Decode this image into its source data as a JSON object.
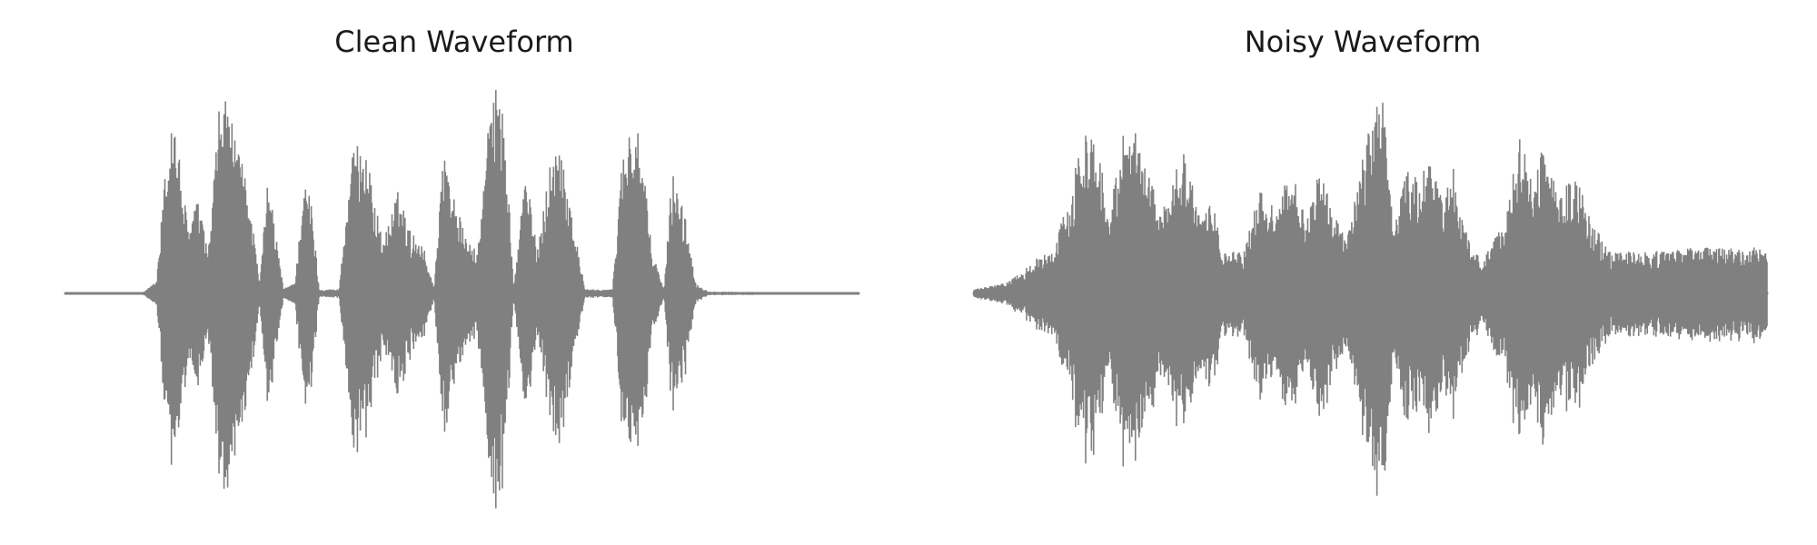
{
  "chart_data": [
    {
      "type": "line",
      "title": "Clean Waveform",
      "xlabel": "",
      "ylabel": "",
      "axes_visible": false,
      "grid": false,
      "line_color": "#808080",
      "ylim": [
        -1.0,
        1.0
      ],
      "series": [
        {
          "envelope": [
            [
              0.0,
              0.0
            ],
            [
              0.095,
              0.0
            ],
            [
              0.1,
              0.01
            ],
            [
              0.115,
              0.06
            ],
            [
              0.125,
              0.55
            ],
            [
              0.135,
              0.9
            ],
            [
              0.145,
              0.62
            ],
            [
              0.155,
              0.3
            ],
            [
              0.165,
              0.48
            ],
            [
              0.18,
              0.2
            ],
            [
              0.195,
              0.94
            ],
            [
              0.205,
              0.95
            ],
            [
              0.215,
              0.7
            ],
            [
              0.23,
              0.55
            ],
            [
              0.245,
              0.04
            ],
            [
              0.255,
              0.55
            ],
            [
              0.265,
              0.3
            ],
            [
              0.275,
              0.02
            ],
            [
              0.29,
              0.06
            ],
            [
              0.3,
              0.55
            ],
            [
              0.31,
              0.45
            ],
            [
              0.32,
              0.02
            ],
            [
              0.345,
              0.02
            ],
            [
              0.36,
              0.65
            ],
            [
              0.375,
              0.76
            ],
            [
              0.39,
              0.45
            ],
            [
              0.4,
              0.25
            ],
            [
              0.42,
              0.5
            ],
            [
              0.435,
              0.3
            ],
            [
              0.45,
              0.25
            ],
            [
              0.465,
              0.02
            ],
            [
              0.475,
              0.7
            ],
            [
              0.485,
              0.55
            ],
            [
              0.495,
              0.4
            ],
            [
              0.505,
              0.26
            ],
            [
              0.52,
              0.2
            ],
            [
              0.535,
              0.9
            ],
            [
              0.545,
              1.0
            ],
            [
              0.555,
              0.8
            ],
            [
              0.565,
              0.02
            ],
            [
              0.58,
              0.6
            ],
            [
              0.595,
              0.2
            ],
            [
              0.61,
              0.62
            ],
            [
              0.625,
              0.75
            ],
            [
              0.64,
              0.35
            ],
            [
              0.655,
              0.02
            ],
            [
              0.69,
              0.02
            ],
            [
              0.7,
              0.6
            ],
            [
              0.71,
              0.8
            ],
            [
              0.72,
              0.82
            ],
            [
              0.73,
              0.55
            ],
            [
              0.74,
              0.2
            ],
            [
              0.755,
              0.02
            ],
            [
              0.765,
              0.6
            ],
            [
              0.78,
              0.4
            ],
            [
              0.795,
              0.05
            ],
            [
              0.81,
              0.01
            ],
            [
              1.0,
              0.0
            ]
          ]
        }
      ]
    },
    {
      "type": "line",
      "title": "Noisy Waveform",
      "xlabel": "",
      "ylabel": "",
      "axes_visible": false,
      "grid": false,
      "line_color": "#808080",
      "ylim": [
        -1.0,
        1.0
      ],
      "series": [
        {
          "envelope": [
            [
              0.0,
              0.02
            ],
            [
              0.04,
              0.05
            ],
            [
              0.06,
              0.1
            ],
            [
              0.08,
              0.18
            ],
            [
              0.1,
              0.2
            ],
            [
              0.125,
              0.55
            ],
            [
              0.14,
              0.8
            ],
            [
              0.155,
              0.78
            ],
            [
              0.17,
              0.35
            ],
            [
              0.185,
              0.78
            ],
            [
              0.2,
              0.85
            ],
            [
              0.215,
              0.65
            ],
            [
              0.235,
              0.4
            ],
            [
              0.25,
              0.55
            ],
            [
              0.265,
              0.7
            ],
            [
              0.285,
              0.35
            ],
            [
              0.3,
              0.45
            ],
            [
              0.315,
              0.2
            ],
            [
              0.34,
              0.2
            ],
            [
              0.36,
              0.5
            ],
            [
              0.38,
              0.4
            ],
            [
              0.4,
              0.6
            ],
            [
              0.42,
              0.35
            ],
            [
              0.435,
              0.65
            ],
            [
              0.45,
              0.45
            ],
            [
              0.47,
              0.25
            ],
            [
              0.49,
              0.65
            ],
            [
              0.505,
              0.9
            ],
            [
              0.515,
              1.0
            ],
            [
              0.53,
              0.3
            ],
            [
              0.545,
              0.6
            ],
            [
              0.56,
              0.55
            ],
            [
              0.575,
              0.65
            ],
            [
              0.59,
              0.45
            ],
            [
              0.605,
              0.6
            ],
            [
              0.62,
              0.3
            ],
            [
              0.64,
              0.15
            ],
            [
              0.67,
              0.35
            ],
            [
              0.69,
              0.8
            ],
            [
              0.705,
              0.55
            ],
            [
              0.72,
              0.75
            ],
            [
              0.735,
              0.5
            ],
            [
              0.76,
              0.55
            ],
            [
              0.775,
              0.4
            ],
            [
              0.8,
              0.2
            ],
            [
              0.85,
              0.2
            ],
            [
              0.9,
              0.22
            ],
            [
              0.95,
              0.22
            ],
            [
              1.0,
              0.22
            ]
          ]
        }
      ]
    }
  ]
}
